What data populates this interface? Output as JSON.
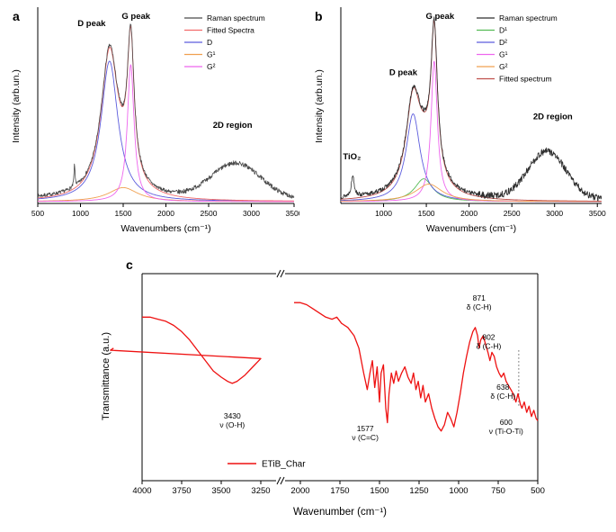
{
  "panels": {
    "a": {
      "letter": "a",
      "ylabel": "Intensity (arb.un.)",
      "xlabel": "Wavenumbers (cm⁻¹)"
    },
    "b": {
      "letter": "b",
      "ylabel": "Intensity (arb.un.)",
      "xlabel": "Wavenumbers (cm⁻¹)"
    },
    "c": {
      "letter": "c",
      "ylabel": "Transmittance (a.u.)",
      "xlabel": "Wavenumber (cm⁻¹)"
    }
  },
  "chart_data": [
    {
      "id": "a",
      "type": "line",
      "title": "",
      "xlabel": "Wavenumbers (cm⁻¹)",
      "ylabel": "Intensity (arb.un.)",
      "xlim": [
        500,
        3500
      ],
      "xticks": [
        500,
        1000,
        1500,
        2000,
        2500,
        3000,
        3500
      ],
      "legend_position": "top-right",
      "legend": [
        {
          "label": "Raman spectrum",
          "color": "#4a4a4a"
        },
        {
          "label": "Fitted Spectra",
          "color": "#f26b6b"
        },
        {
          "label": "D",
          "color": "#5c5cdd"
        },
        {
          "label": "G¹",
          "color": "#f0a050"
        },
        {
          "label": "G²",
          "color": "#ee66ee"
        }
      ],
      "annotations": [
        {
          "text": "D peak",
          "x": 1130,
          "y": 1.0
        },
        {
          "text": "G peak",
          "x": 1650,
          "y": 1.04
        },
        {
          "text": "2D region",
          "x": 2780,
          "y": 0.42
        }
      ],
      "fit_components": [
        {
          "name": "D",
          "color": "#5c5cdd",
          "center": 1340,
          "fwhm": 240,
          "height": 0.8
        },
        {
          "name": "G¹",
          "color": "#f0a050",
          "center": 1500,
          "fwhm": 420,
          "height": 0.08
        },
        {
          "name": "G²",
          "color": "#ee66ee",
          "center": 1588,
          "fwhm": 95,
          "height": 0.78
        }
      ],
      "extra_features": [
        {
          "name": "2D band",
          "shape": "gauss",
          "center": 2820,
          "fwhm": 680,
          "height": 0.2
        },
        {
          "name": "spike",
          "shape": "lorentz",
          "center": 930,
          "fwhm": 14,
          "height": 0.13
        }
      ],
      "raw_color": "#4a4a4a",
      "fit_color": "#f26b6b",
      "noise": 0.01,
      "noise_hi": 0.013,
      "seed": 7
    },
    {
      "id": "b",
      "type": "line",
      "title": "",
      "xlabel": "Wavenumbers (cm⁻¹)",
      "ylabel": "Intensity (arb.un.)",
      "xlim": [
        500,
        3550
      ],
      "xticks": [
        1000,
        1500,
        2000,
        2500,
        3000,
        3500
      ],
      "legend_position": "top-right",
      "legend": [
        {
          "label": "Raman spectrum",
          "color": "#2f2f2f"
        },
        {
          "label": "D¹",
          "color": "#55bb55"
        },
        {
          "label": "D²",
          "color": "#5c5cdd"
        },
        {
          "label": "G¹",
          "color": "#ee66ee"
        },
        {
          "label": "G²",
          "color": "#f0a050"
        },
        {
          "label": "Fitted spectrum",
          "color": "#c0504d"
        }
      ],
      "annotations": [
        {
          "text": "G peak",
          "x": 1660,
          "y": 1.04
        },
        {
          "text": "D peak",
          "x": 1230,
          "y": 0.72
        },
        {
          "text": "TiO₂",
          "x": 630,
          "y": 0.24
        },
        {
          "text": "2D region",
          "x": 2980,
          "y": 0.47
        }
      ],
      "fit_components": [
        {
          "name": "D¹",
          "color": "#55bb55",
          "center": 1470,
          "fwhm": 260,
          "height": 0.13
        },
        {
          "name": "D²",
          "color": "#5c5cdd",
          "center": 1345,
          "fwhm": 200,
          "height": 0.5
        },
        {
          "name": "G¹",
          "color": "#ee66ee",
          "center": 1592,
          "fwhm": 90,
          "height": 0.8
        },
        {
          "name": "G²",
          "color": "#f0a050",
          "center": 1530,
          "fwhm": 380,
          "height": 0.1
        }
      ],
      "extra_features": [
        {
          "name": "TiO₂ band",
          "shape": "lorentz",
          "center": 640,
          "fwhm": 40,
          "height": 0.12
        },
        {
          "name": "2D band",
          "shape": "gauss",
          "center": 2910,
          "fwhm": 520,
          "height": 0.27
        }
      ],
      "raw_color": "#2f2f2f",
      "fit_color": "#c0504d",
      "noise": 0.012,
      "noise_hi": 0.02,
      "seed": 13
    },
    {
      "id": "c",
      "type": "line",
      "title": "",
      "xlabel": "Wavenumber (cm⁻¹)",
      "ylabel": "Transmittance (a.u.)",
      "series_name": "ETiB_Char",
      "series_color": "#ee1111",
      "axis_break": {
        "segments": [
          [
            4000,
            3250,
            0,
            0.3
          ],
          [
            2000,
            500,
            0.4,
            1.0
          ]
        ],
        "break_f": 0.35
      },
      "xticks": [
        4000,
        3750,
        3500,
        3250,
        2000,
        1750,
        1500,
        1250,
        1000,
        750,
        500
      ],
      "legend": [
        {
          "label": "ETiB_Char",
          "color": "#ee1111"
        }
      ],
      "annotations": [
        {
          "lines": [
            "3430",
            "ν (O-H)"
          ],
          "x": 3430,
          "y": 0.3
        },
        {
          "lines": [
            "1577",
            "ν (C=C)"
          ],
          "x": 1590,
          "y": 0.24
        },
        {
          "lines": [
            "871",
            "δ (C-H)"
          ],
          "x": 871,
          "y": 0.87
        },
        {
          "lines": [
            "802",
            "δ (C-H)"
          ],
          "x": 810,
          "y": 0.68
        },
        {
          "lines": [
            "638",
            "δ (C-H)"
          ],
          "x": 720,
          "y": 0.44
        },
        {
          "lines": [
            "600",
            "ν (Ti-O-Ti)"
          ],
          "x": 700,
          "y": 0.27
        }
      ],
      "dotted_line": {
        "x": 620,
        "y0": 0.36,
        "y1": 0.63
      },
      "curve_left": [
        [
          4000,
          0.79
        ],
        [
          3950,
          0.79
        ],
        [
          3900,
          0.78
        ],
        [
          3850,
          0.77
        ],
        [
          3800,
          0.75
        ],
        [
          3750,
          0.72
        ],
        [
          3700,
          0.68
        ],
        [
          3650,
          0.63
        ],
        [
          3600,
          0.58
        ],
        [
          3550,
          0.53
        ],
        [
          3500,
          0.5
        ],
        [
          3460,
          0.48
        ],
        [
          3430,
          0.47
        ],
        [
          3400,
          0.48
        ],
        [
          3350,
          0.51
        ],
        [
          3300,
          0.55
        ],
        [
          3250,
          0.59
        ],
        [
          3200,
          0.63
        ],
        [
          3180,
          0.64
        ]
      ],
      "curve_right": [
        [
          2040,
          0.86
        ],
        [
          2000,
          0.86
        ],
        [
          1960,
          0.85
        ],
        [
          1920,
          0.83
        ],
        [
          1880,
          0.81
        ],
        [
          1840,
          0.79
        ],
        [
          1800,
          0.78
        ],
        [
          1770,
          0.79
        ],
        [
          1740,
          0.76
        ],
        [
          1700,
          0.74
        ],
        [
          1660,
          0.7
        ],
        [
          1630,
          0.64
        ],
        [
          1600,
          0.52
        ],
        [
          1577,
          0.44
        ],
        [
          1560,
          0.52
        ],
        [
          1545,
          0.58
        ],
        [
          1530,
          0.45
        ],
        [
          1515,
          0.55
        ],
        [
          1500,
          0.38
        ],
        [
          1490,
          0.52
        ],
        [
          1475,
          0.56
        ],
        [
          1460,
          0.35
        ],
        [
          1450,
          0.28
        ],
        [
          1440,
          0.42
        ],
        [
          1425,
          0.52
        ],
        [
          1410,
          0.47
        ],
        [
          1395,
          0.53
        ],
        [
          1380,
          0.48
        ],
        [
          1360,
          0.52
        ],
        [
          1340,
          0.55
        ],
        [
          1320,
          0.5
        ],
        [
          1300,
          0.47
        ],
        [
          1285,
          0.52
        ],
        [
          1270,
          0.44
        ],
        [
          1255,
          0.48
        ],
        [
          1240,
          0.4
        ],
        [
          1225,
          0.46
        ],
        [
          1210,
          0.38
        ],
        [
          1190,
          0.42
        ],
        [
          1170,
          0.35
        ],
        [
          1150,
          0.3
        ],
        [
          1130,
          0.26
        ],
        [
          1110,
          0.24
        ],
        [
          1090,
          0.27
        ],
        [
          1070,
          0.33
        ],
        [
          1050,
          0.3
        ],
        [
          1030,
          0.26
        ],
        [
          1010,
          0.33
        ],
        [
          990,
          0.42
        ],
        [
          970,
          0.52
        ],
        [
          950,
          0.6
        ],
        [
          930,
          0.67
        ],
        [
          910,
          0.72
        ],
        [
          895,
          0.74
        ],
        [
          880,
          0.7
        ],
        [
          871,
          0.64
        ],
        [
          860,
          0.68
        ],
        [
          845,
          0.7
        ],
        [
          830,
          0.66
        ],
        [
          815,
          0.62
        ],
        [
          802,
          0.58
        ],
        [
          790,
          0.62
        ],
        [
          775,
          0.6
        ],
        [
          760,
          0.55
        ],
        [
          745,
          0.52
        ],
        [
          730,
          0.5
        ],
        [
          715,
          0.52
        ],
        [
          700,
          0.48
        ],
        [
          685,
          0.46
        ],
        [
          670,
          0.44
        ],
        [
          655,
          0.42
        ],
        [
          638,
          0.38
        ],
        [
          625,
          0.42
        ],
        [
          610,
          0.37
        ],
        [
          600,
          0.35
        ],
        [
          585,
          0.38
        ],
        [
          570,
          0.33
        ],
        [
          555,
          0.36
        ],
        [
          540,
          0.31
        ],
        [
          525,
          0.34
        ],
        [
          510,
          0.3
        ],
        [
          500,
          0.29
        ]
      ]
    }
  ]
}
